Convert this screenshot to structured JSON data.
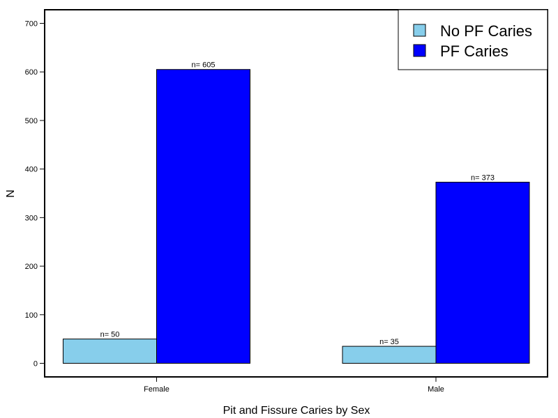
{
  "chart_data": {
    "type": "bar",
    "title": "",
    "xlabel": "Pit and Fissure Caries by Sex",
    "ylabel": "N",
    "categories": [
      "Female",
      "Male"
    ],
    "series": [
      {
        "name": "No PF Caries",
        "values": [
          50,
          35
        ],
        "color": "#87ceeb",
        "labels": [
          "n= 50",
          "n= 35"
        ]
      },
      {
        "name": "PF Caries",
        "values": [
          605,
          373
        ],
        "color": "#0000ff",
        "labels": [
          "n= 605",
          "n= 373"
        ]
      }
    ],
    "ylim": [
      -28,
      728
    ],
    "yticks": [
      0,
      100,
      200,
      300,
      400,
      500,
      600,
      700
    ],
    "ytick_labels": [
      "0",
      "100",
      "200",
      "300",
      "400",
      "500",
      "600",
      "700"
    ],
    "grid": false,
    "legend_position": "top-right"
  }
}
